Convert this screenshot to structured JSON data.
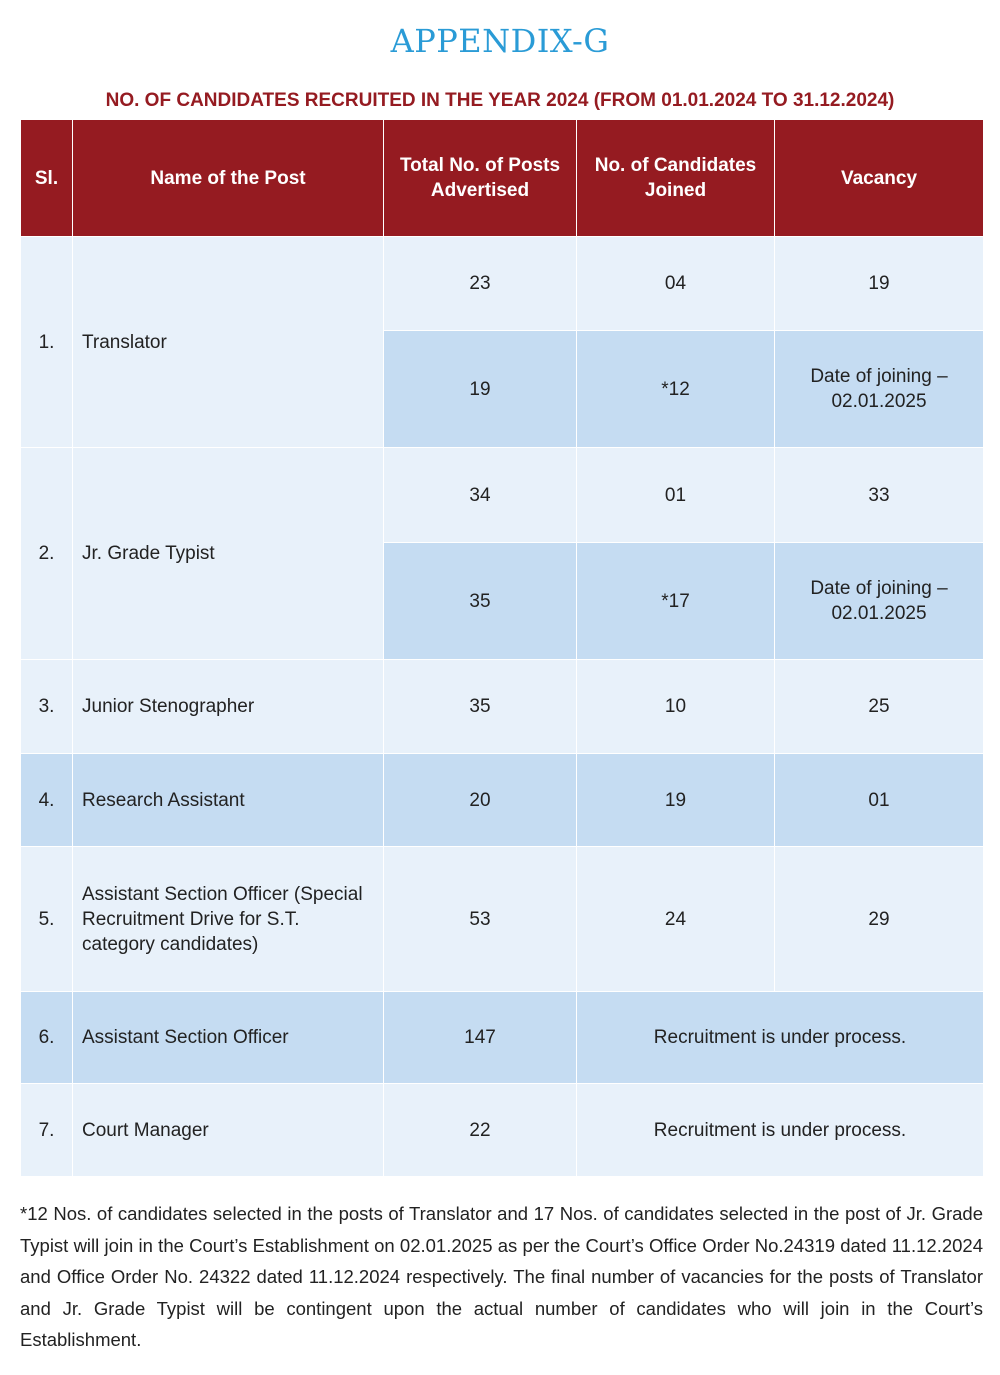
{
  "title": "APPENDIX-G",
  "subtitle": "NO. OF CANDIDATES RECRUITED IN THE YEAR 2024  (FROM 01.01.2024 TO 31.12.2024)",
  "headers": {
    "sl": "Sl.",
    "name": "Name of the Post",
    "total": "Total No. of Posts Advertised",
    "joined": "No. of Candidates Joined",
    "vacancy": "Vacancy"
  },
  "rows": [
    {
      "sl": "1.",
      "name": "Translator",
      "sub": [
        {
          "total": "23",
          "joined": "04",
          "vacancy": "19"
        },
        {
          "total": "19",
          "joined": "*12",
          "vacancy": "Date of joining – 02.01.2025"
        }
      ]
    },
    {
      "sl": "2.",
      "name": "Jr. Grade Typist",
      "sub": [
        {
          "total": "34",
          "joined": "01",
          "vacancy": "33"
        },
        {
          "total": "35",
          "joined": "*17",
          "vacancy": "Date of joining – 02.01.2025"
        }
      ]
    },
    {
      "sl": "3.",
      "name": "Junior Stenographer",
      "total": "35",
      "joined": "10",
      "vacancy": "25"
    },
    {
      "sl": "4.",
      "name": "Research Assistant",
      "total": "20",
      "joined": "19",
      "vacancy": "01"
    },
    {
      "sl": "5.",
      "name": "Assistant Section Officer (Special Recruitment Drive for S.T. category candidates)",
      "total": "53",
      "joined": "24",
      "vacancy": "29"
    },
    {
      "sl": "6.",
      "name": "Assistant Section Officer",
      "total": "147",
      "status": "Recruitment is under process."
    },
    {
      "sl": "7.",
      "name": "Court Manager",
      "total": "22",
      "status": "Recruitment is under process."
    }
  ],
  "footnote": "*12 Nos. of candidates selected in the posts of Translator and 17 Nos. of candidates selected in the post of Jr. Grade Typist will join in the Court’s Establishment on 02.01.2025 as per the Court’s Office Order No.24319 dated 11.12.2024 and Office Order No. 24322 dated 11.12.2024 respectively. The final number of vacancies for the posts of Translator and Jr. Grade Typist will be contingent upon the actual number of candidates who will join in the Court’s Establishment.",
  "colors": {
    "header": "#951b21",
    "title": "#2a9bd6",
    "row_light": "#e8f1fa",
    "row_mid": "#c5dcf2"
  }
}
